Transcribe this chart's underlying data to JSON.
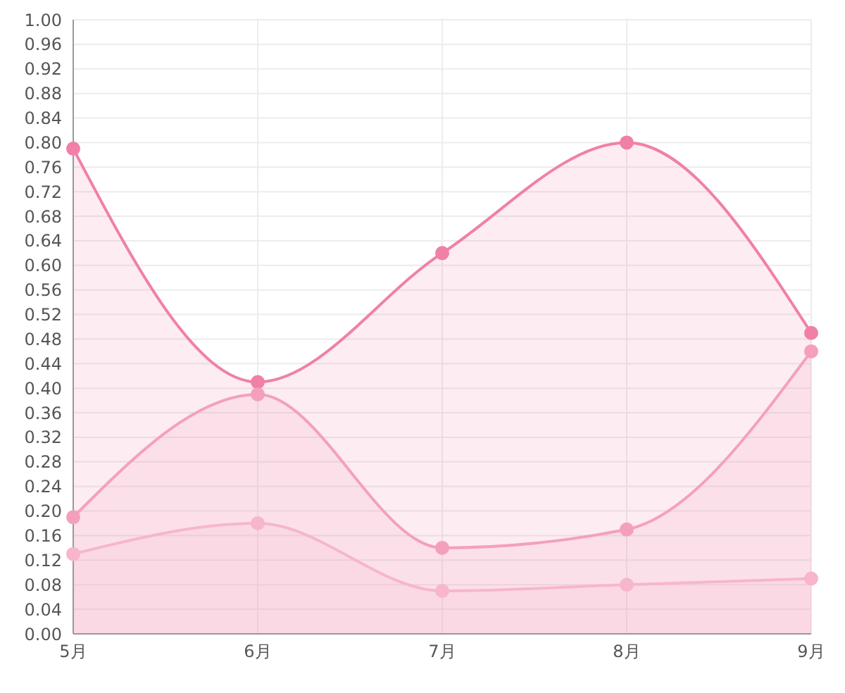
{
  "chart_data": {
    "type": "area",
    "categories": [
      "5月",
      "6月",
      "7月",
      "8月",
      "9月"
    ],
    "series": [
      {
        "color": "#f080a8",
        "values": [
          0.79,
          0.41,
          0.62,
          0.8,
          0.49
        ]
      },
      {
        "color": "#f4a0bd",
        "values": [
          0.19,
          0.39,
          0.14,
          0.17,
          0.46
        ]
      },
      {
        "color": "#f7b6cb",
        "values": [
          0.13,
          0.18,
          0.07,
          0.08,
          0.09
        ]
      }
    ],
    "ylim": [
      0,
      1
    ],
    "yticks": [
      {
        "value": 0,
        "label": "0.00"
      },
      0.04,
      0.08,
      0.12,
      0.16,
      {
        "value": 0.2,
        "label": "0.20"
      },
      0.24,
      0.28,
      0.32,
      0.36,
      {
        "value": 0.4,
        "label": "0.40"
      },
      0.44,
      0.48,
      0.52,
      0.56,
      {
        "value": 0.6,
        "label": "0.60"
      },
      0.64,
      0.68,
      0.72,
      0.76,
      {
        "value": 0.8,
        "label": "0.80"
      },
      0.84,
      0.88,
      0.92,
      0.96,
      {
        "value": 1,
        "label": "1.00"
      }
    ],
    "grid": true,
    "marker": "circle"
  }
}
